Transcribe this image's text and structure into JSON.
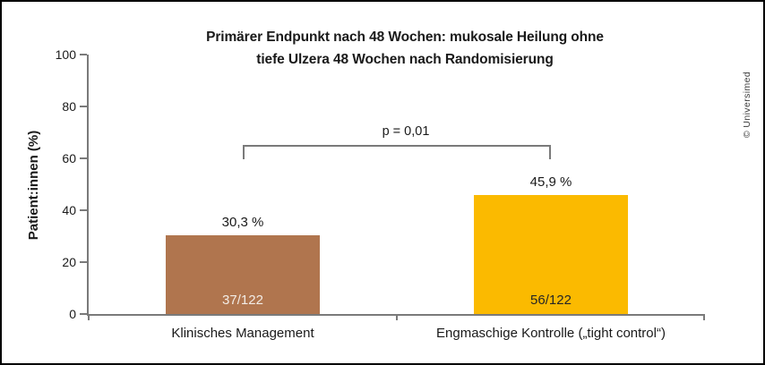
{
  "credit": "© Universimed",
  "chart_data": {
    "type": "bar",
    "title": "Primärer Endpunkt nach 48 Wochen: mukosale Heilung ohne tiefe Ulzera 48 Wochen nach Randomisierung",
    "title_lines": [
      "Primärer Endpunkt nach 48 Wochen: mukosale Heilung ohne",
      "tiefe Ulzera 48 Wochen nach Randomisierung"
    ],
    "ylabel": "Patient:innen (%)",
    "ylim": [
      0,
      100
    ],
    "yticks": [
      0,
      20,
      40,
      60,
      80,
      100
    ],
    "grid": false,
    "legend": "none",
    "categories": [
      "Klinisches Management",
      "Engmaschige Kontrolle („tight control“)"
    ],
    "values": [
      30.3,
      45.9
    ],
    "value_labels": [
      "30,3 %",
      "45,9 %"
    ],
    "count_labels": [
      "37/122",
      "56/122"
    ],
    "bar_colors": [
      "#b0754e",
      "#fbba00"
    ],
    "count_label_colors": [
      "#f2ece6",
      "#262626"
    ],
    "axis_color": "#7a7a7a",
    "p_label": "p = 0,01"
  }
}
